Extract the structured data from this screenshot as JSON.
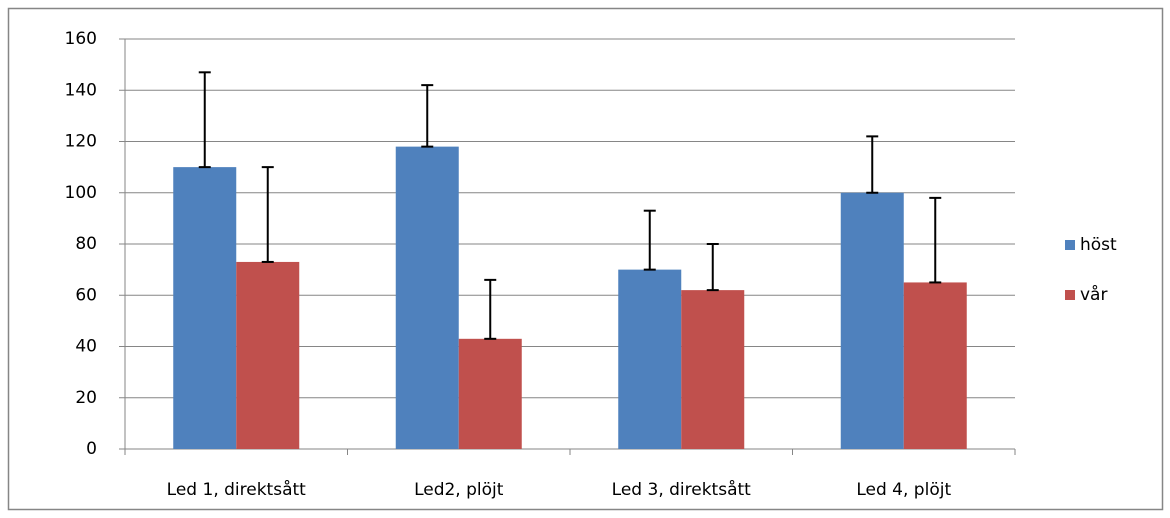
{
  "chart_data": {
    "type": "bar",
    "categories": [
      "Led 1, direktsått",
      "Led2, plöjt",
      "Led 3, direktsått",
      "Led 4, plöjt"
    ],
    "series": [
      {
        "name": "höst",
        "color": "#4f81bd",
        "values": [
          110,
          118,
          70,
          100
        ],
        "errors": [
          37,
          24,
          23,
          22
        ]
      },
      {
        "name": "vår",
        "color": "#c0504d",
        "values": [
          73,
          43,
          62,
          65
        ],
        "errors": [
          37,
          23,
          18,
          33
        ]
      }
    ],
    "ylim": [
      0,
      160
    ],
    "yticks": [
      0,
      20,
      40,
      60,
      80,
      100,
      120,
      140,
      160
    ],
    "grid": true,
    "legend": "right"
  }
}
